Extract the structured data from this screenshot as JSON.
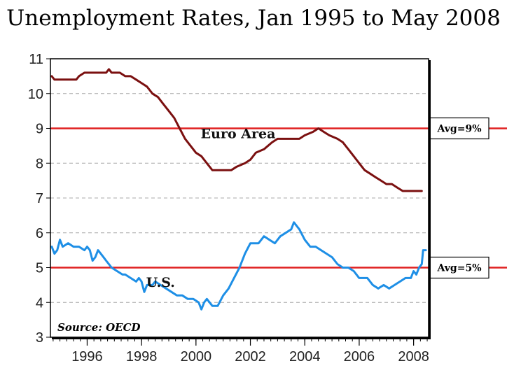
{
  "chart_data": {
    "type": "line",
    "title": "Unemployment Rates, Jan 1995 to May 2008",
    "source_prefix": "Source",
    "source_rest": ": OECD",
    "ylim": [
      3,
      11
    ],
    "y_ticks": [
      "3",
      "4",
      "5",
      "6",
      "7",
      "8",
      "9",
      "10",
      "11"
    ],
    "xlim": [
      1994.65,
      2008.55
    ],
    "x_ticks": [
      "1996",
      "1998",
      "2000",
      "2002",
      "2004",
      "2006",
      "2008"
    ],
    "grid": "horizontal dashed",
    "reference_lines": [
      {
        "value": 9,
        "label": "Avg=9%",
        "color": "#e02020"
      },
      {
        "value": 5,
        "label": "Avg=5%",
        "color": "#e02020"
      }
    ],
    "series": [
      {
        "name": "Euro Area",
        "color": "#7b1010",
        "points": [
          [
            1994.7,
            10.5
          ],
          [
            1994.8,
            10.4
          ],
          [
            1995.0,
            10.4
          ],
          [
            1995.3,
            10.4
          ],
          [
            1995.6,
            10.4
          ],
          [
            1995.7,
            10.5
          ],
          [
            1995.9,
            10.6
          ],
          [
            1996.2,
            10.6
          ],
          [
            1996.5,
            10.6
          ],
          [
            1996.7,
            10.6
          ],
          [
            1996.8,
            10.7
          ],
          [
            1996.9,
            10.6
          ],
          [
            1997.2,
            10.6
          ],
          [
            1997.4,
            10.5
          ],
          [
            1997.6,
            10.5
          ],
          [
            1997.8,
            10.4
          ],
          [
            1998.0,
            10.3
          ],
          [
            1998.2,
            10.2
          ],
          [
            1998.4,
            10.0
          ],
          [
            1998.6,
            9.9
          ],
          [
            1998.8,
            9.7
          ],
          [
            1999.0,
            9.5
          ],
          [
            1999.2,
            9.3
          ],
          [
            1999.4,
            9.0
          ],
          [
            1999.6,
            8.7
          ],
          [
            1999.8,
            8.5
          ],
          [
            2000.0,
            8.3
          ],
          [
            2000.2,
            8.2
          ],
          [
            2000.4,
            8.0
          ],
          [
            2000.6,
            7.8
          ],
          [
            2000.8,
            7.8
          ],
          [
            2001.0,
            7.8
          ],
          [
            2001.3,
            7.8
          ],
          [
            2001.5,
            7.9
          ],
          [
            2001.8,
            8.0
          ],
          [
            2002.0,
            8.1
          ],
          [
            2002.2,
            8.3
          ],
          [
            2002.5,
            8.4
          ],
          [
            2002.8,
            8.6
          ],
          [
            2003.0,
            8.7
          ],
          [
            2003.3,
            8.7
          ],
          [
            2003.6,
            8.7
          ],
          [
            2003.8,
            8.7
          ],
          [
            2004.0,
            8.8
          ],
          [
            2004.3,
            8.9
          ],
          [
            2004.5,
            9.0
          ],
          [
            2004.7,
            8.9
          ],
          [
            2004.9,
            8.8
          ],
          [
            2005.2,
            8.7
          ],
          [
            2005.4,
            8.6
          ],
          [
            2005.6,
            8.4
          ],
          [
            2005.8,
            8.2
          ],
          [
            2006.0,
            8.0
          ],
          [
            2006.2,
            7.8
          ],
          [
            2006.4,
            7.7
          ],
          [
            2006.6,
            7.6
          ],
          [
            2006.8,
            7.5
          ],
          [
            2007.0,
            7.4
          ],
          [
            2007.2,
            7.4
          ],
          [
            2007.4,
            7.3
          ],
          [
            2007.6,
            7.2
          ],
          [
            2007.8,
            7.2
          ],
          [
            2008.0,
            7.2
          ],
          [
            2008.1,
            7.2
          ],
          [
            2008.3,
            7.2
          ]
        ]
      },
      {
        "name": "U.S.",
        "color": "#1e8fe6",
        "points": [
          [
            1994.7,
            5.6
          ],
          [
            1994.8,
            5.4
          ],
          [
            1994.9,
            5.5
          ],
          [
            1995.0,
            5.8
          ],
          [
            1995.1,
            5.6
          ],
          [
            1995.3,
            5.7
          ],
          [
            1995.5,
            5.6
          ],
          [
            1995.7,
            5.6
          ],
          [
            1995.9,
            5.5
          ],
          [
            1996.0,
            5.6
          ],
          [
            1996.1,
            5.5
          ],
          [
            1996.2,
            5.2
          ],
          [
            1996.3,
            5.3
          ],
          [
            1996.4,
            5.5
          ],
          [
            1996.5,
            5.4
          ],
          [
            1996.6,
            5.3
          ],
          [
            1996.7,
            5.2
          ],
          [
            1996.9,
            5.0
          ],
          [
            1997.1,
            4.9
          ],
          [
            1997.3,
            4.8
          ],
          [
            1997.4,
            4.8
          ],
          [
            1997.6,
            4.7
          ],
          [
            1997.8,
            4.6
          ],
          [
            1997.9,
            4.7
          ],
          [
            1998.0,
            4.6
          ],
          [
            1998.1,
            4.3
          ],
          [
            1998.2,
            4.5
          ],
          [
            1998.4,
            4.5
          ],
          [
            1998.5,
            4.6
          ],
          [
            1998.7,
            4.5
          ],
          [
            1998.9,
            4.4
          ],
          [
            1999.1,
            4.3
          ],
          [
            1999.3,
            4.2
          ],
          [
            1999.5,
            4.2
          ],
          [
            1999.7,
            4.1
          ],
          [
            1999.9,
            4.1
          ],
          [
            2000.1,
            4.0
          ],
          [
            2000.2,
            3.8
          ],
          [
            2000.3,
            4.0
          ],
          [
            2000.4,
            4.1
          ],
          [
            2000.6,
            3.9
          ],
          [
            2000.8,
            3.9
          ],
          [
            2001.0,
            4.2
          ],
          [
            2001.2,
            4.4
          ],
          [
            2001.4,
            4.7
          ],
          [
            2001.6,
            5.0
          ],
          [
            2001.8,
            5.4
          ],
          [
            2002.0,
            5.7
          ],
          [
            2002.3,
            5.7
          ],
          [
            2002.5,
            5.9
          ],
          [
            2002.7,
            5.8
          ],
          [
            2002.9,
            5.7
          ],
          [
            2003.1,
            5.9
          ],
          [
            2003.3,
            6.0
          ],
          [
            2003.5,
            6.1
          ],
          [
            2003.6,
            6.3
          ],
          [
            2003.8,
            6.1
          ],
          [
            2004.0,
            5.8
          ],
          [
            2004.2,
            5.6
          ],
          [
            2004.4,
            5.6
          ],
          [
            2004.6,
            5.5
          ],
          [
            2004.8,
            5.4
          ],
          [
            2005.0,
            5.3
          ],
          [
            2005.2,
            5.1
          ],
          [
            2005.4,
            5.0
          ],
          [
            2005.6,
            5.0
          ],
          [
            2005.8,
            4.9
          ],
          [
            2006.0,
            4.7
          ],
          [
            2006.3,
            4.7
          ],
          [
            2006.5,
            4.5
          ],
          [
            2006.7,
            4.4
          ],
          [
            2006.9,
            4.5
          ],
          [
            2007.1,
            4.4
          ],
          [
            2007.3,
            4.5
          ],
          [
            2007.5,
            4.6
          ],
          [
            2007.7,
            4.7
          ],
          [
            2007.9,
            4.7
          ],
          [
            2008.0,
            4.9
          ],
          [
            2008.1,
            4.8
          ],
          [
            2008.2,
            5.0
          ],
          [
            2008.3,
            5.1
          ],
          [
            2008.35,
            5.5
          ],
          [
            2008.45,
            5.5
          ]
        ]
      }
    ],
    "series_labels": [
      {
        "text": "Euro Area",
        "x": 2001.55,
        "y": 8.72
      },
      {
        "text": "U.S.",
        "x": 1998.7,
        "y": 4.45
      }
    ]
  }
}
